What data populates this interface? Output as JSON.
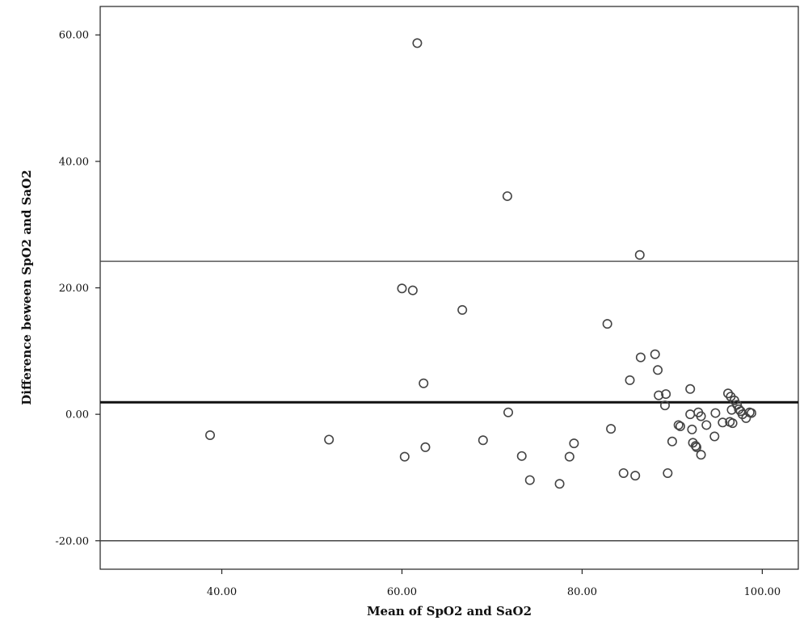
{
  "chart_data": {
    "type": "scatter",
    "title": "",
    "xlabel": "Mean of SpO2 and SaO2",
    "ylabel": "Difference beween SpO2 and SaO2",
    "xlim": [
      26.5,
      104
    ],
    "ylim": [
      -24.5,
      64.5
    ],
    "x_ticks": [
      40,
      60,
      80,
      100
    ],
    "y_ticks": [
      -20,
      0,
      20,
      40,
      60
    ],
    "x_tick_labels": [
      "40.00",
      "60.00",
      "80.00",
      "100.00"
    ],
    "y_tick_labels": [
      "-20.00",
      "0.00",
      "20.00",
      "40.00",
      "60.00"
    ],
    "grid": false,
    "reference_lines": {
      "mean_difference": 1.9,
      "upper_limit": 24.2,
      "lower_limit": -20.0
    },
    "points": [
      {
        "x": 38.7,
        "y": -3.3
      },
      {
        "x": 51.9,
        "y": -4.0
      },
      {
        "x": 60.0,
        "y": 19.9
      },
      {
        "x": 61.2,
        "y": 19.6
      },
      {
        "x": 60.3,
        "y": -6.7
      },
      {
        "x": 61.7,
        "y": 58.7
      },
      {
        "x": 62.4,
        "y": 4.9
      },
      {
        "x": 62.6,
        "y": -5.2
      },
      {
        "x": 66.7,
        "y": 16.5
      },
      {
        "x": 69.0,
        "y": -4.1
      },
      {
        "x": 71.7,
        "y": 34.5
      },
      {
        "x": 71.8,
        "y": 0.3
      },
      {
        "x": 73.3,
        "y": -6.6
      },
      {
        "x": 74.2,
        "y": -10.4
      },
      {
        "x": 77.5,
        "y": -11.0
      },
      {
        "x": 78.6,
        "y": -6.7
      },
      {
        "x": 79.1,
        "y": -4.6
      },
      {
        "x": 82.8,
        "y": 14.3
      },
      {
        "x": 83.2,
        "y": -2.3
      },
      {
        "x": 84.6,
        "y": -9.3
      },
      {
        "x": 85.3,
        "y": 5.4
      },
      {
        "x": 85.9,
        "y": -9.7
      },
      {
        "x": 86.4,
        "y": 25.2
      },
      {
        "x": 86.5,
        "y": 9.0
      },
      {
        "x": 88.1,
        "y": 9.5
      },
      {
        "x": 88.4,
        "y": 7.0
      },
      {
        "x": 88.5,
        "y": 3.0
      },
      {
        "x": 89.2,
        "y": 1.4
      },
      {
        "x": 89.3,
        "y": 3.2
      },
      {
        "x": 89.5,
        "y": -9.3
      },
      {
        "x": 90.0,
        "y": -4.3
      },
      {
        "x": 90.7,
        "y": -1.7
      },
      {
        "x": 90.9,
        "y": -1.9
      },
      {
        "x": 92.0,
        "y": 0.0
      },
      {
        "x": 92.0,
        "y": 4.0
      },
      {
        "x": 92.2,
        "y": -2.4
      },
      {
        "x": 92.3,
        "y": -4.5
      },
      {
        "x": 92.6,
        "y": -5.0
      },
      {
        "x": 92.7,
        "y": -5.2
      },
      {
        "x": 92.9,
        "y": 0.3
      },
      {
        "x": 93.2,
        "y": -6.4
      },
      {
        "x": 93.2,
        "y": -0.3
      },
      {
        "x": 93.8,
        "y": -1.7
      },
      {
        "x": 94.7,
        "y": -3.5
      },
      {
        "x": 94.8,
        "y": 0.2
      },
      {
        "x": 95.6,
        "y": -1.3
      },
      {
        "x": 96.2,
        "y": 3.3
      },
      {
        "x": 96.4,
        "y": -1.2
      },
      {
        "x": 96.5,
        "y": 2.8
      },
      {
        "x": 96.6,
        "y": 0.7
      },
      {
        "x": 96.7,
        "y": -1.4
      },
      {
        "x": 96.9,
        "y": 2.2
      },
      {
        "x": 97.2,
        "y": 1.5
      },
      {
        "x": 97.4,
        "y": 0.8
      },
      {
        "x": 97.6,
        "y": 0.5
      },
      {
        "x": 97.8,
        "y": 0.0
      },
      {
        "x": 98.2,
        "y": -0.6
      },
      {
        "x": 98.6,
        "y": 0.3
      },
      {
        "x": 98.8,
        "y": 0.2
      }
    ]
  }
}
